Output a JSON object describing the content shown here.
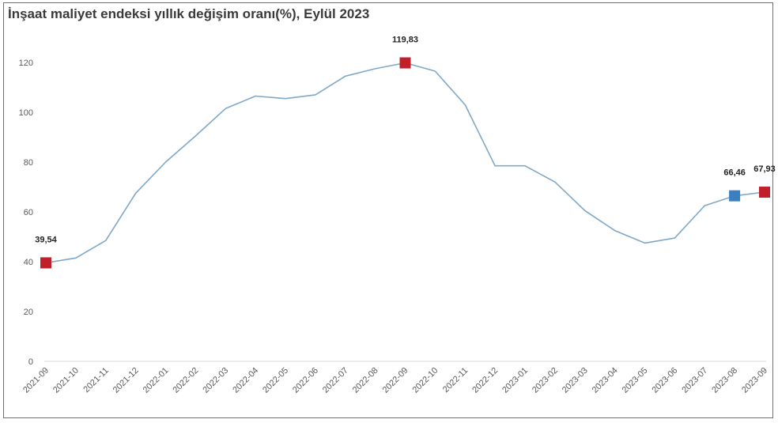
{
  "chart_data": {
    "type": "line",
    "title": "İnşaat maliyet endeksi yıllık değişim oranı(%), Eylül 2023",
    "xlabel": "",
    "ylabel": "",
    "ylim": [
      0,
      120
    ],
    "yticks": [
      0,
      20,
      40,
      60,
      80,
      100,
      120
    ],
    "grid": false,
    "legend": "none",
    "categories": [
      "2021-09",
      "2021-10",
      "2021-11",
      "2021-12",
      "2022-01",
      "2022-02",
      "2022-03",
      "2022-04",
      "2022-05",
      "2022-06",
      "2022-07",
      "2022-08",
      "2022-09",
      "2022-10",
      "2022-11",
      "2022-12",
      "2023-01",
      "2023-02",
      "2023-03",
      "2023-04",
      "2023-05",
      "2023-06",
      "2023-07",
      "2023-08",
      "2023-09"
    ],
    "series": [
      {
        "values": [
          39.54,
          41.5,
          48.5,
          67.5,
          80,
          90.5,
          101.5,
          106.5,
          105.5,
          107,
          114.5,
          117.5,
          119.83,
          116.5,
          103,
          78.5,
          78.5,
          72,
          60.5,
          52.5,
          47.5,
          49.5,
          62.5,
          66.46,
          67.93
        ],
        "color": "#7fa8c8"
      }
    ],
    "highlights": [
      {
        "index": 0,
        "label": "39,54",
        "color": "#c0202a"
      },
      {
        "index": 12,
        "label": "119,83",
        "color": "#c0202a"
      },
      {
        "index": 23,
        "label": "66,46",
        "color": "#3a7fc0"
      },
      {
        "index": 24,
        "label": "67,93",
        "color": "#c0202a"
      }
    ]
  }
}
